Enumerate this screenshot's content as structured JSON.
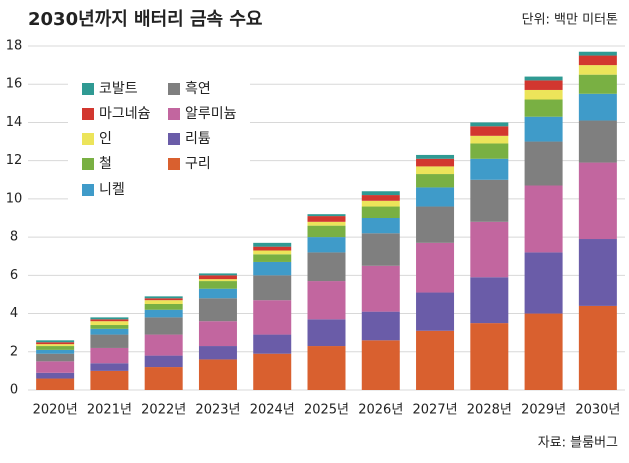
{
  "chart_data": {
    "type": "stacked_bar",
    "title": "2030년까지 배터리 금속 수요",
    "subtitle": "단위: 백만 미터톤",
    "source": "자료: 블룸버그",
    "categories": [
      "2020년",
      "2021년",
      "2022년",
      "2023년",
      "2024년",
      "2025년",
      "2026년",
      "2027년",
      "2028년",
      "2029년",
      "2030년"
    ],
    "series": [
      {
        "name": "구리",
        "color": "#d9602f",
        "values": [
          0.6,
          1.0,
          1.2,
          1.6,
          1.9,
          2.3,
          2.6,
          3.1,
          3.5,
          4.0,
          4.4
        ]
      },
      {
        "name": "리튬",
        "color": "#6a5ca8",
        "values": [
          0.3,
          0.4,
          0.6,
          0.7,
          1.0,
          1.4,
          1.5,
          2.0,
          2.4,
          3.2,
          3.5
        ]
      },
      {
        "name": "알루미늄",
        "color": "#c2669f",
        "values": [
          0.6,
          0.8,
          1.1,
          1.3,
          1.8,
          2.0,
          2.4,
          2.6,
          2.9,
          3.5,
          4.0
        ]
      },
      {
        "name": "흑연",
        "color": "#7f7f7f",
        "values": [
          0.4,
          0.7,
          0.9,
          1.2,
          1.3,
          1.5,
          1.7,
          1.9,
          2.2,
          2.3,
          2.2
        ]
      },
      {
        "name": "니켈",
        "color": "#3f9bc9",
        "values": [
          0.2,
          0.3,
          0.4,
          0.5,
          0.7,
          0.8,
          0.8,
          1.0,
          1.1,
          1.3,
          1.4
        ]
      },
      {
        "name": "철",
        "color": "#79b043",
        "values": [
          0.2,
          0.2,
          0.3,
          0.4,
          0.4,
          0.6,
          0.6,
          0.7,
          0.8,
          0.9,
          1.0
        ]
      },
      {
        "name": "인",
        "color": "#ece45a",
        "values": [
          0.1,
          0.2,
          0.2,
          0.1,
          0.2,
          0.2,
          0.3,
          0.4,
          0.4,
          0.5,
          0.5
        ]
      },
      {
        "name": "마그네슘",
        "color": "#d2372f",
        "values": [
          0.1,
          0.1,
          0.1,
          0.2,
          0.2,
          0.3,
          0.3,
          0.4,
          0.5,
          0.5,
          0.5
        ]
      },
      {
        "name": "코발트",
        "color": "#2f9a93",
        "values": [
          0.1,
          0.1,
          0.1,
          0.1,
          0.2,
          0.1,
          0.2,
          0.2,
          0.2,
          0.2,
          0.2
        ]
      }
    ],
    "ylim": [
      0,
      18
    ],
    "yticks": [
      0,
      2,
      4,
      6,
      8,
      10,
      12,
      14,
      16,
      18
    ],
    "grid": true
  }
}
